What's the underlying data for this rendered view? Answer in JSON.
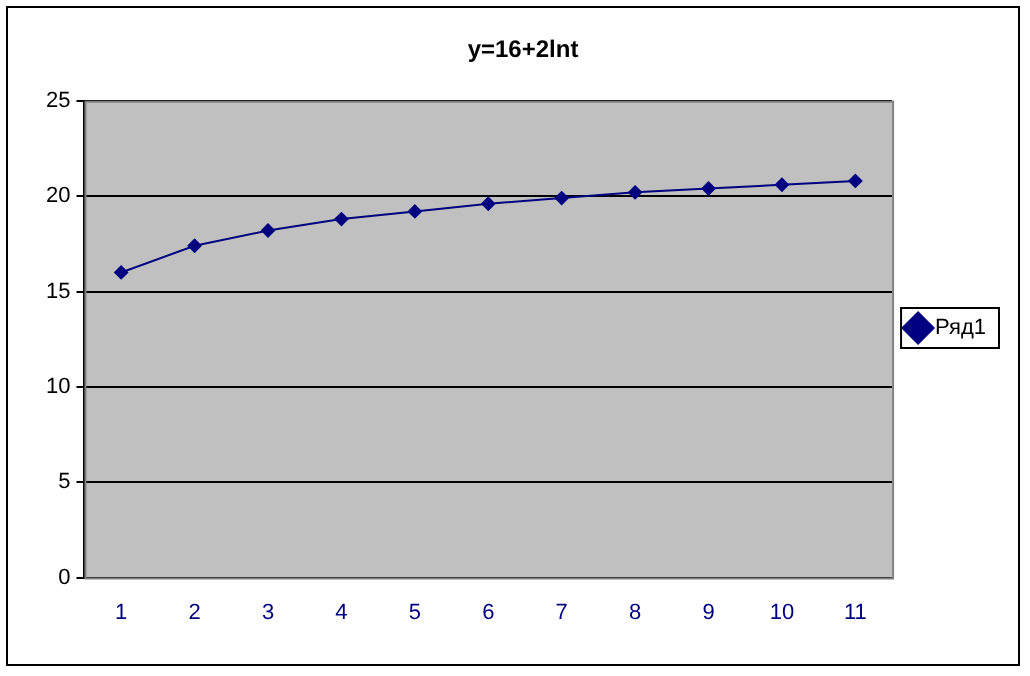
{
  "chart_data": {
    "type": "line",
    "title": "y=16+2lnt",
    "categories": [
      "1",
      "2",
      "3",
      "4",
      "5",
      "6",
      "7",
      "8",
      "9",
      "10",
      "11"
    ],
    "series": [
      {
        "name": "Ряд1",
        "color": "#000080",
        "values": [
          16,
          17.4,
          18.2,
          18.8,
          19.2,
          19.6,
          19.9,
          20.2,
          20.4,
          20.6,
          20.8
        ]
      }
    ],
    "ylim": [
      0,
      25
    ],
    "yticks": [
      0,
      5,
      10,
      15,
      20,
      25
    ],
    "grid": "y",
    "legend": "right",
    "marker": "diamond",
    "line_style": "solid"
  }
}
